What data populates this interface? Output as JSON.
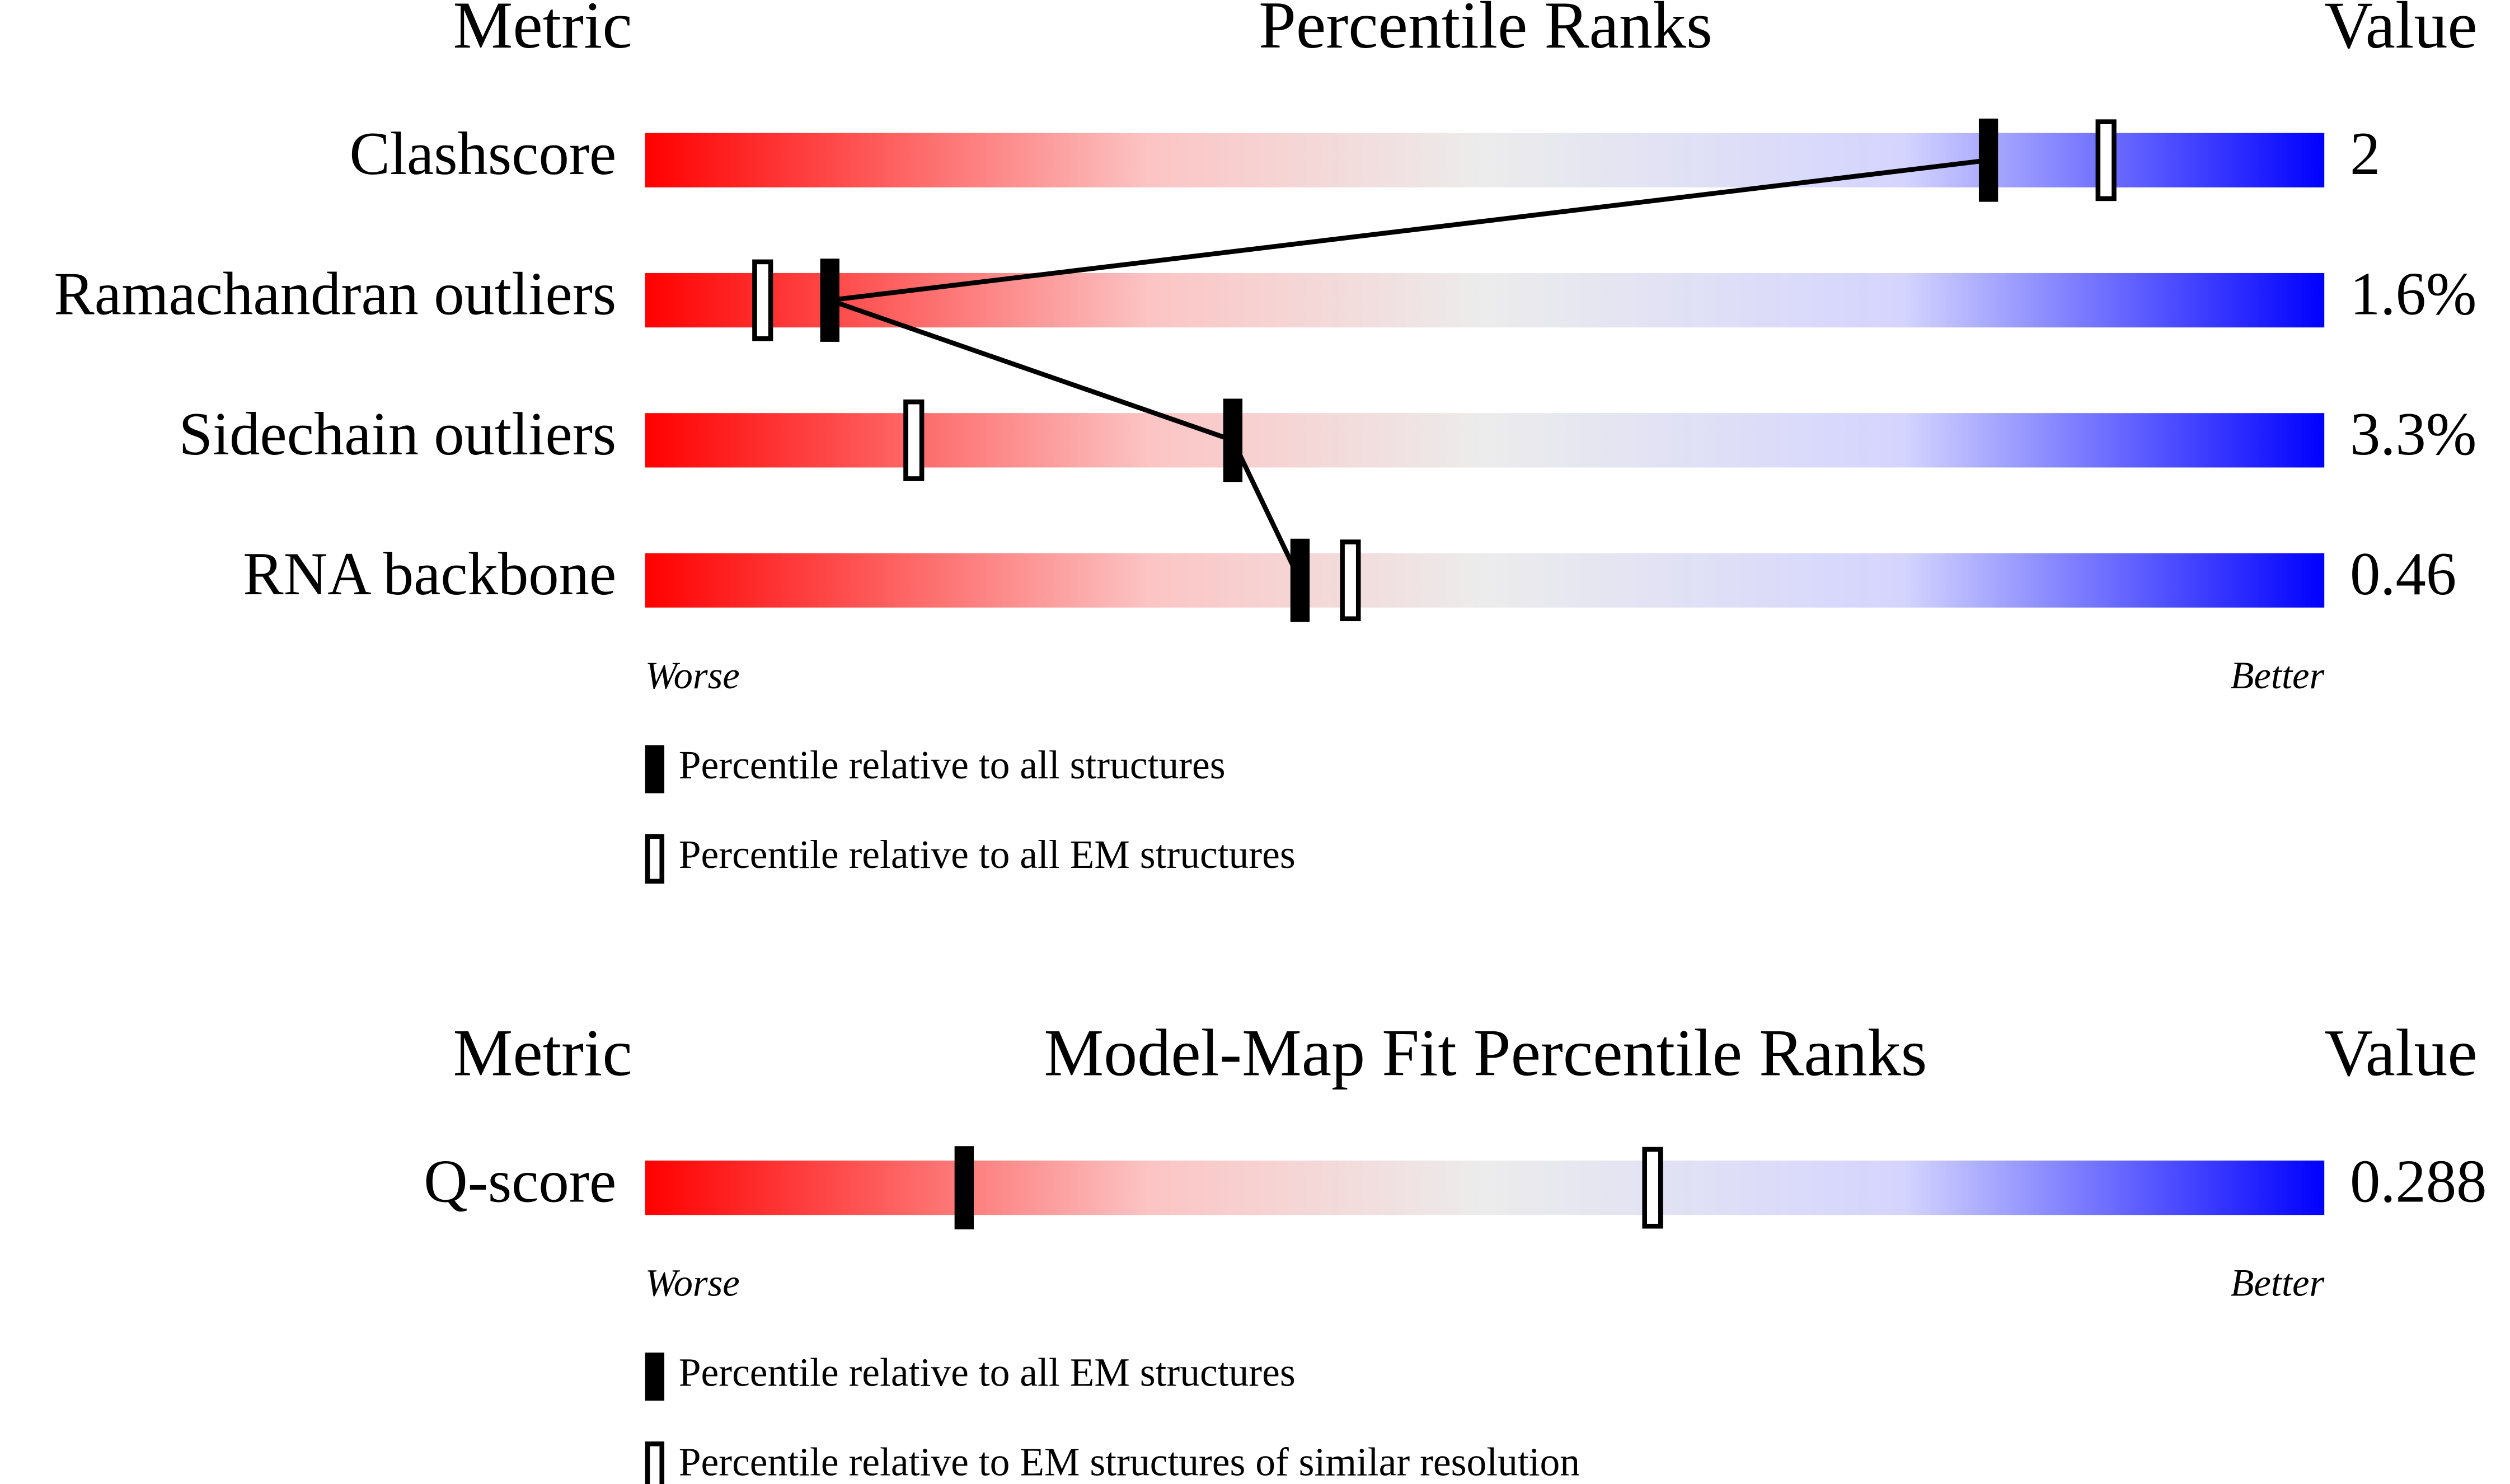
{
  "chart_data": [
    {
      "type": "percentile",
      "header": {
        "metric": "Metric",
        "title": "Percentile Ranks",
        "value": "Value"
      },
      "categories": [
        "Clashscore",
        "Ramachandran outliers",
        "Sidechain outliers",
        "RNA backbone"
      ],
      "series": [
        {
          "name": "Percentile relative to all structures",
          "style": "filled",
          "color": "#000000",
          "values": [
            80,
            11,
            35,
            39
          ]
        },
        {
          "name": "Percentile relative to all EM structures",
          "style": "open",
          "color": "#000000",
          "values": [
            87,
            7,
            16,
            42
          ]
        }
      ],
      "metric_values": {
        "values": [
          2,
          1.6,
          3.3,
          0.46
        ],
        "value_labels": [
          "2",
          "1.6%",
          "3.3%",
          "0.46"
        ]
      },
      "xlim": [
        0,
        100
      ],
      "worse": "Worse",
      "better": "Better",
      "connect": true
    },
    {
      "type": "percentile",
      "header": {
        "metric": "Metric",
        "title": "Model-Map Fit Percentile Ranks",
        "value": "Value"
      },
      "categories": [
        "Q-score"
      ],
      "series": [
        {
          "name": "Percentile relative to all EM structures",
          "style": "filled",
          "color": "#000000",
          "values": [
            19
          ]
        },
        {
          "name": "Percentile relative to EM structures of similar resolution",
          "style": "open",
          "color": "#000000",
          "values": [
            60
          ]
        }
      ],
      "metric_values": {
        "values": [
          0.288
        ],
        "value_labels": [
          "0.288"
        ]
      },
      "xlim": [
        0,
        100
      ],
      "worse": "Worse",
      "better": "Better",
      "connect": false
    }
  ]
}
